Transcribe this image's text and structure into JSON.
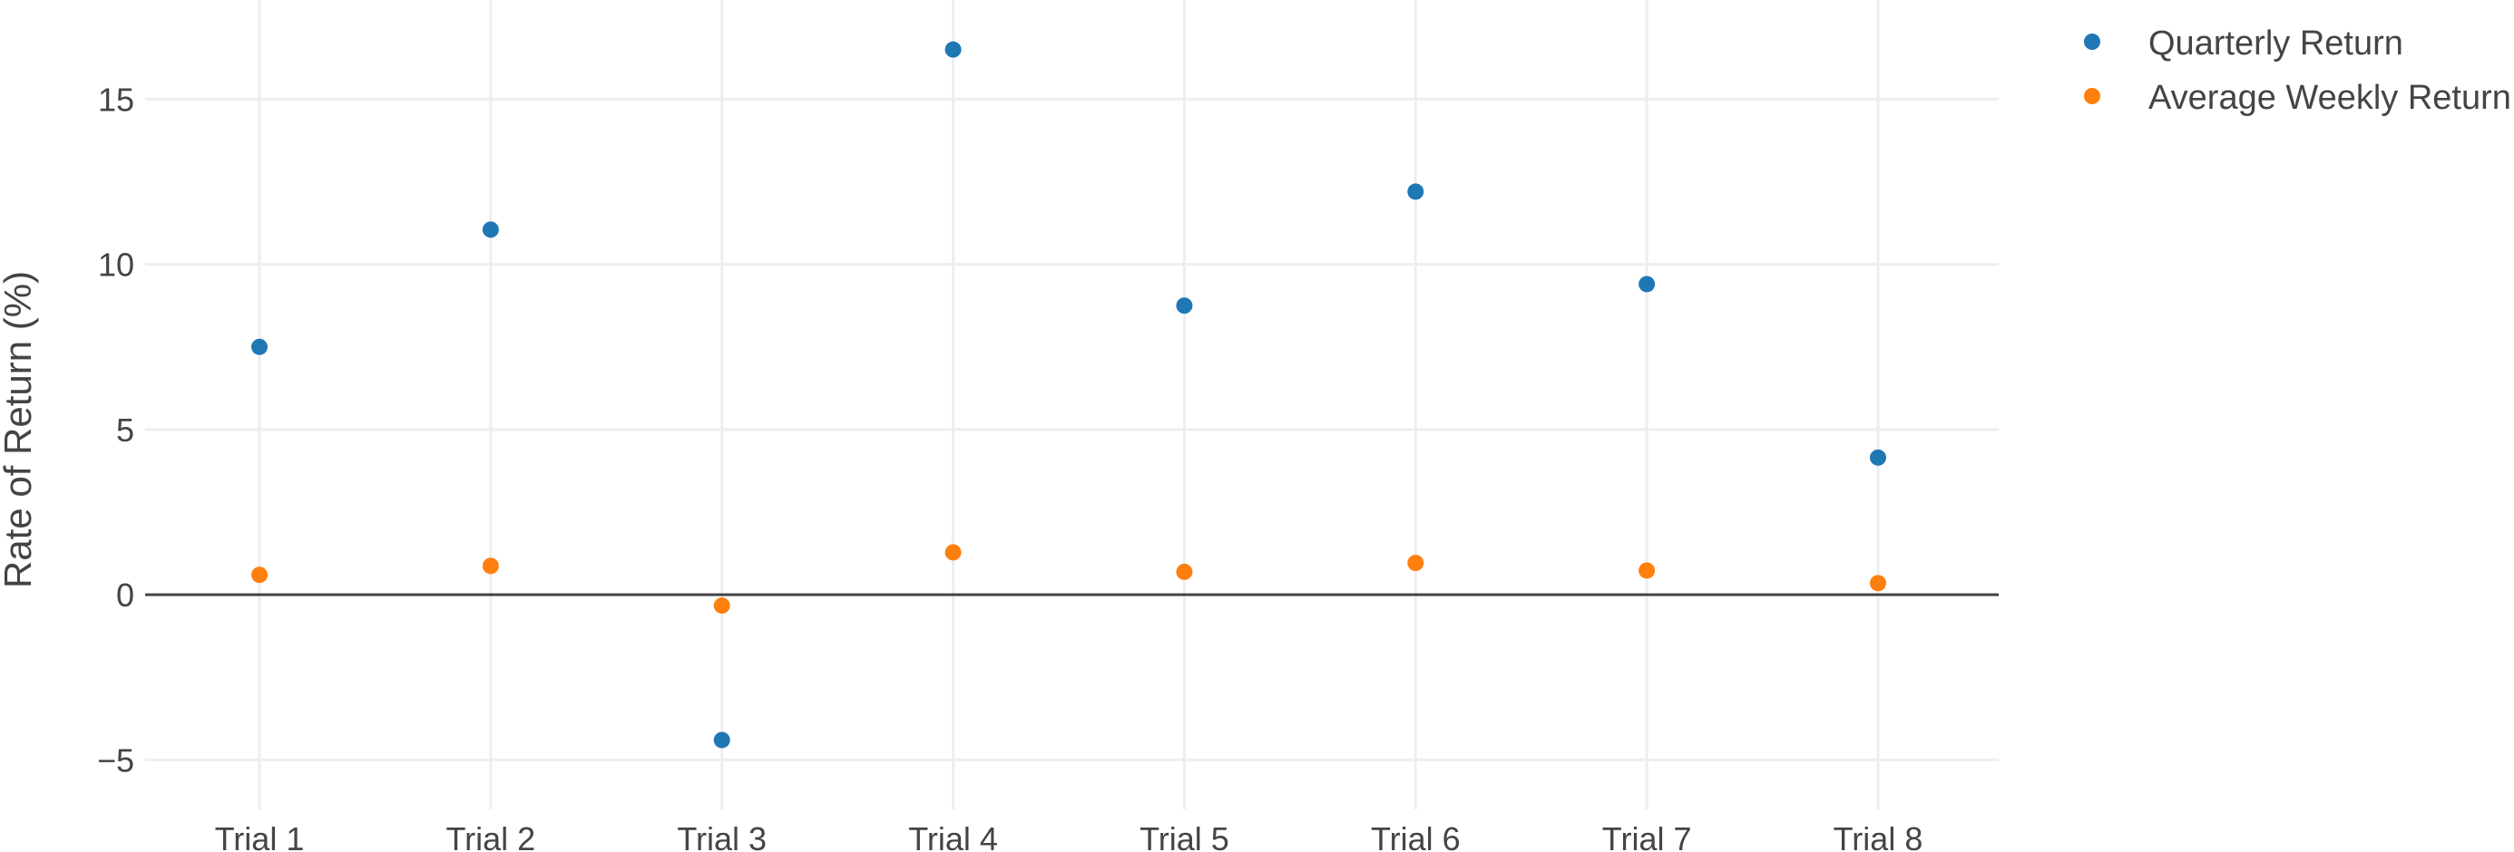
{
  "chart_data": {
    "type": "scatter",
    "title": "",
    "xlabel": "",
    "ylabel": "Rate of Return (%)",
    "categories": [
      "Trial 1",
      "Trial 2",
      "Trial 3",
      "Trial 4",
      "Trial 5",
      "Trial 6",
      "Trial 7",
      "Trial 8"
    ],
    "ylim": [
      -6.5,
      18
    ],
    "yticks": [
      -5,
      0,
      5,
      10,
      15
    ],
    "ytick_labels": [
      "−5",
      "0",
      "5",
      "10",
      "15"
    ],
    "grid": true,
    "legend_position": "top-right",
    "series": [
      {
        "name": "Quarterly Return",
        "color": "#1f77b4",
        "values": [
          7.5,
          11.05,
          -4.4,
          16.5,
          8.75,
          12.2,
          9.4,
          4.15
        ]
      },
      {
        "name": "Average Weekly Return",
        "color": "#ff7f0e",
        "values": [
          0.6,
          0.87,
          -0.33,
          1.28,
          0.69,
          0.96,
          0.73,
          0.35
        ]
      }
    ]
  }
}
